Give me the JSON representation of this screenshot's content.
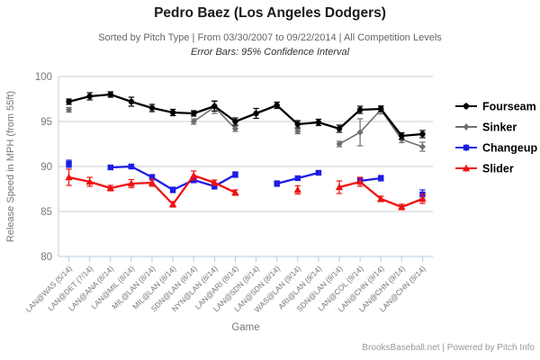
{
  "title": "Pedro Baez (Los Angeles Dodgers)",
  "subtitle": "Sorted by Pitch Type | From 03/30/2007 to 09/22/2014 | All Competition Levels",
  "error_note": "Error Bars: 95% Confidence Interval",
  "footer": "BrooksBaseball.net | Powered by Pitch Info",
  "chart_data": {
    "type": "line",
    "title": "Pedro Baez (Los Angeles Dodgers)",
    "xlabel": "Game",
    "ylabel": "Release Speed in MPH (from 55ft)",
    "ylim": [
      80,
      100
    ],
    "yticks": [
      100,
      95,
      90,
      85,
      80
    ],
    "grid": "horizontal",
    "legend_position": "right",
    "colors": {
      "grid": "#cccccc",
      "axis": "#b7cce1",
      "tick_label": "#777777",
      "axis_title": "#777777",
      "legend_text": "#000000"
    },
    "categories": [
      "LAN@WAS (5/14)",
      "LAN@DET (7/14)",
      "LAN@ANA (8/14)",
      "LAN@MIL (8/14)",
      "MIL@LAN (8/14)",
      "MIL@LAN (8/14)",
      "SDN@LAN (8/14)",
      "NYN@LAN (8/14)",
      "LAN@ARI (8/14)",
      "LAN@SDN (8/14)",
      "LAN@SDN (8/14)",
      "WAS@LAN (9/14)",
      "ARI@LAN (9/14)",
      "SDN@LAN (9/14)",
      "LAN@COL (9/14)",
      "LAN@CHN (9/14)",
      "LAN@CHN (9/14)",
      "LAN@CHN (9/14)"
    ],
    "series": [
      {
        "name": "Sinker",
        "color": "#6e6e6e",
        "marker": "diamond",
        "line_width": 1.6,
        "segments": [
          [
            {
              "x": 1,
              "y": 96.3,
              "e": 0.25
            }
          ],
          [
            {
              "x": 7,
              "y": 95.0,
              "e": 0.3
            },
            {
              "x": 8,
              "y": 96.6,
              "e": 0.7
            },
            {
              "x": 9,
              "y": 94.2,
              "e": 0.3
            }
          ],
          [
            {
              "x": 12,
              "y": 93.9,
              "e": 0.25
            }
          ],
          [
            {
              "x": 14,
              "y": 92.5,
              "e": 0.3
            },
            {
              "x": 15,
              "y": 93.8,
              "e": 1.5
            },
            {
              "x": 16,
              "y": 96.3,
              "e": 0.45
            },
            {
              "x": 17,
              "y": 93.0,
              "e": 0.35
            },
            {
              "x": 18,
              "y": 92.2,
              "e": 0.5
            }
          ]
        ]
      },
      {
        "name": "Fourseam",
        "color": "#000000",
        "marker": "circle",
        "line_width": 2.3,
        "segments": [
          [
            {
              "x": 1,
              "y": 97.2,
              "e": 0.3
            },
            {
              "x": 2,
              "y": 97.8,
              "e": 0.4
            },
            {
              "x": 3,
              "y": 98.0,
              "e": 0.3
            },
            {
              "x": 4,
              "y": 97.2,
              "e": 0.5
            },
            {
              "x": 5,
              "y": 96.5,
              "e": 0.4
            },
            {
              "x": 6,
              "y": 96.0,
              "e": 0.35
            },
            {
              "x": 7,
              "y": 95.9,
              "e": 0.3
            },
            {
              "x": 8,
              "y": 96.7,
              "e": 0.55
            },
            {
              "x": 9,
              "y": 95.0,
              "e": 0.4
            },
            {
              "x": 10,
              "y": 95.9,
              "e": 0.55
            },
            {
              "x": 11,
              "y": 96.8,
              "e": 0.35
            },
            {
              "x": 12,
              "y": 94.7,
              "e": 0.4
            },
            {
              "x": 13,
              "y": 94.9,
              "e": 0.35
            },
            {
              "x": 14,
              "y": 94.2,
              "e": 0.4
            },
            {
              "x": 15,
              "y": 96.3,
              "e": 0.4
            },
            {
              "x": 16,
              "y": 96.4,
              "e": 0.3
            },
            {
              "x": 17,
              "y": 93.4,
              "e": 0.35
            },
            {
              "x": 18,
              "y": 93.6,
              "e": 0.4
            }
          ]
        ]
      },
      {
        "name": "Changeup",
        "color": "#1c1ce6",
        "marker": "square",
        "line_width": 2.3,
        "segments": [
          [
            {
              "x": 1,
              "y": 90.3,
              "e": 0.4
            }
          ],
          [
            {
              "x": 3,
              "y": 89.9,
              "e": 0.2
            },
            {
              "x": 4,
              "y": 90.0,
              "e": 0.2
            },
            {
              "x": 5,
              "y": 88.8,
              "e": 0.3
            },
            {
              "x": 6,
              "y": 87.4,
              "e": 0.3
            },
            {
              "x": 7,
              "y": 88.5,
              "e": 0.3
            },
            {
              "x": 8,
              "y": 87.8,
              "e": 0.3
            },
            {
              "x": 9,
              "y": 89.1,
              "e": 0.3
            }
          ],
          [
            {
              "x": 11,
              "y": 88.1,
              "e": 0.3
            },
            {
              "x": 12,
              "y": 88.7,
              "e": 0.2
            },
            {
              "x": 13,
              "y": 89.3,
              "e": 0.2
            }
          ],
          [
            {
              "x": 15,
              "y": 88.4,
              "e": 0.35
            },
            {
              "x": 16,
              "y": 88.7,
              "e": 0.3
            }
          ],
          [
            {
              "x": 18,
              "y": 86.9,
              "e": 0.5
            }
          ]
        ]
      },
      {
        "name": "Slider",
        "color": "#ee1111",
        "marker": "triangle",
        "line_width": 2.3,
        "segments": [
          [
            {
              "x": 1,
              "y": 88.8,
              "e": 0.9
            },
            {
              "x": 2,
              "y": 88.3,
              "e": 0.5
            },
            {
              "x": 3,
              "y": 87.6,
              "e": 0.3
            },
            {
              "x": 4,
              "y": 88.1,
              "e": 0.45
            },
            {
              "x": 5,
              "y": 88.2,
              "e": 0.4
            },
            {
              "x": 6,
              "y": 85.8,
              "e": 0.3
            },
            {
              "x": 7,
              "y": 89.0,
              "e": 0.5
            },
            {
              "x": 8,
              "y": 88.2,
              "e": 0.3
            },
            {
              "x": 9,
              "y": 87.1,
              "e": 0.3
            }
          ],
          [
            {
              "x": 12,
              "y": 87.4,
              "e": 0.45
            }
          ],
          [
            {
              "x": 14,
              "y": 87.7,
              "e": 0.7
            },
            {
              "x": 15,
              "y": 88.3,
              "e": 0.5
            },
            {
              "x": 16,
              "y": 86.4,
              "e": 0.3
            },
            {
              "x": 17,
              "y": 85.5,
              "e": 0.3
            },
            {
              "x": 18,
              "y": 86.4,
              "e": 0.5
            }
          ]
        ]
      }
    ],
    "legend_order": [
      "Fourseam",
      "Sinker",
      "Changeup",
      "Slider"
    ]
  }
}
